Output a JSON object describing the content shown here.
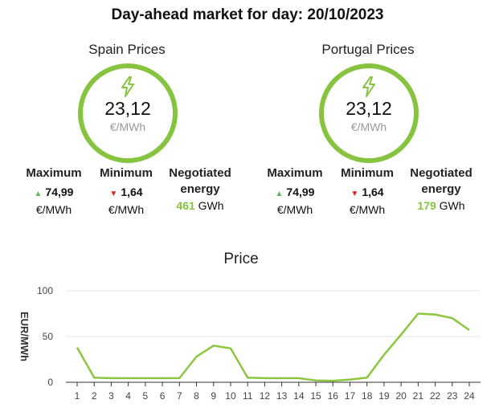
{
  "page": {
    "title": "Day-ahead market for day: 20/10/2023"
  },
  "spain": {
    "heading": "Spain Prices",
    "price": "23,12",
    "price_unit": "€/MWh",
    "max_label": "Maximum",
    "max_value": "74,99",
    "max_unit": "€/MWh",
    "min_label": "Minimum",
    "min_value": "1,64",
    "min_unit": "€/MWh",
    "neg_label_1": "Negotiated",
    "neg_label_2": "energy",
    "neg_value": "461",
    "neg_unit": "GWh"
  },
  "portugal": {
    "heading": "Portugal Prices",
    "price": "23,12",
    "price_unit": "€/MWh",
    "max_label": "Maximum",
    "max_value": "74,99",
    "max_unit": "€/MWh",
    "min_label": "Minimum",
    "min_value": "1,64",
    "min_unit": "€/MWh",
    "neg_label_1": "Negotiated",
    "neg_label_2": "energy",
    "neg_value": "179",
    "neg_unit": "GWh"
  },
  "icons": {
    "bolt": "lightning-bolt-icon",
    "up": "triangle-up-icon",
    "down": "triangle-down-icon"
  },
  "colors": {
    "accent": "#86c440",
    "up": "#5cb85c",
    "down": "#d9261c",
    "line": "#8cc63f"
  },
  "chart_data": {
    "type": "line",
    "title": "Price",
    "ylabel": "EUR/MWh",
    "xlabel": "",
    "ylim": [
      0,
      100
    ],
    "yticks": [
      0,
      50,
      100
    ],
    "x": [
      1,
      2,
      3,
      4,
      5,
      6,
      7,
      8,
      9,
      10,
      11,
      12,
      13,
      14,
      15,
      16,
      17,
      18,
      19,
      20,
      21,
      22,
      23,
      24
    ],
    "series": [
      {
        "values": [
          38,
          5,
          4.5,
          4.5,
          4.5,
          4.5,
          4.5,
          28,
          40,
          37,
          5,
          4.5,
          4.5,
          4.5,
          2,
          1.64,
          3,
          5,
          30,
          52,
          74.99,
          74,
          70,
          57
        ]
      }
    ],
    "grid": true,
    "legend": "none"
  }
}
